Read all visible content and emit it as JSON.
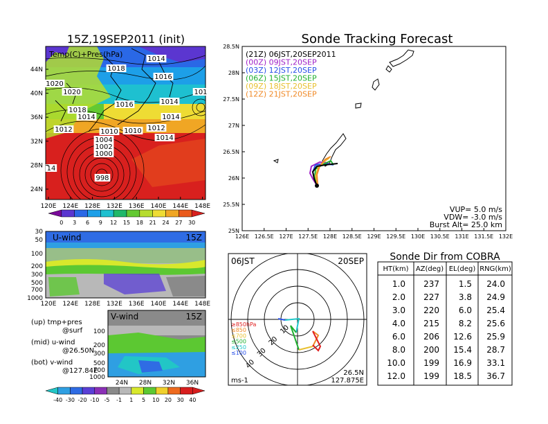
{
  "left": {
    "title": "15Z,19SEP2011 (init)",
    "map": {
      "label": "Temp(C)+Pres(hPa)",
      "lat_ticks": [
        "44N",
        "40N",
        "36N",
        "32N",
        "28N",
        "24N"
      ],
      "lon_ticks": [
        "120E",
        "124E",
        "128E",
        "132E",
        "136E",
        "140E",
        "144E",
        "148E"
      ],
      "isobar_labels": [
        "1014",
        "1018",
        "1016",
        "1020",
        "1020",
        "1014",
        "1018",
        "1016",
        "1014",
        "1014",
        "1012",
        "1010",
        "1010",
        "1012",
        "1014",
        "1004",
        "1002",
        "1000",
        "998",
        "14",
        "101"
      ],
      "colorbar_ticks": [
        "0",
        "3",
        "6",
        "9",
        "12",
        "15",
        "18",
        "21",
        "24",
        "27",
        "30"
      ],
      "colorbar_colors": [
        "#7a0a9a",
        "#5b36d0",
        "#2a68e6",
        "#1d9fe8",
        "#1ec0d0",
        "#1fb86a",
        "#63c932",
        "#b6dc2e",
        "#eedc34",
        "#f0a624",
        "#ea5a1c",
        "#d8201e"
      ]
    },
    "uwind": {
      "label": "U-wind",
      "time": "15Z",
      "y_ticks": [
        "30",
        "50",
        "100",
        "200",
        "300",
        "500",
        "700",
        "1000"
      ],
      "x_ticks": [
        "120E",
        "124E",
        "128E",
        "132E",
        "136E",
        "140E",
        "144E",
        "148E"
      ]
    },
    "vwind": {
      "label": "V-wind",
      "time": "15Z",
      "y_ticks": [
        "100",
        "200",
        "300",
        "500",
        "700",
        "1000"
      ],
      "x_ticks": [
        "24N",
        "28N",
        "32N",
        "36N"
      ]
    },
    "notes": [
      {
        "label": "(up) tmp+pres",
        "sub": "@surf"
      },
      {
        "label": "(mid) u-wind",
        "sub": "@26.50N"
      },
      {
        "label": "(bot) v-wind",
        "sub": "@127.84E"
      }
    ],
    "wind_colorbar_ticks": [
      "-40",
      "-30",
      "-20",
      "-10",
      "-5",
      "-1",
      "1",
      "5",
      "10",
      "20",
      "30",
      "40"
    ],
    "wind_colorbar_colors": [
      "#22c6c6",
      "#2f9fe2",
      "#2f6ce4",
      "#5a3fd6",
      "#8a2fb6",
      "#8a8a8a",
      "#b8b8b8",
      "#d8e82c",
      "#5cc832",
      "#f0d02c",
      "#ee6a1e",
      "#d81e1e"
    ]
  },
  "track": {
    "title": "Sonde Tracking Forecast",
    "lat_ticks": [
      "28.5N",
      "28N",
      "27.5N",
      "27N",
      "26.5N",
      "26N",
      "25.5N",
      "25N"
    ],
    "lon_ticks": [
      "126E",
      "126.5E",
      "127E",
      "127.5E",
      "128E",
      "128.5E",
      "129E",
      "129.5E",
      "130E",
      "130.5E",
      "131E",
      "131.5E",
      "132E"
    ],
    "legend": [
      {
        "text": "(21Z) 06JST,20SEP2011",
        "color": "#000000"
      },
      {
        "text": "(00Z) 09JST,20SEP",
        "color": "#a020c8"
      },
      {
        "text": "(03Z) 12JST,20SEP",
        "color": "#2850e8"
      },
      {
        "text": "(06Z) 15JST,20SEP",
        "color": "#20b030"
      },
      {
        "text": "(09Z) 18JST,20SEP",
        "color": "#e8c030"
      },
      {
        "text": "(12Z) 21JST,20SEP",
        "color": "#f08a28"
      }
    ],
    "params": [
      "VUP= 5.0 m/s",
      "VDW= -3.0 m/s",
      "Burst Alt= 25.0 km"
    ]
  },
  "hodo": {
    "time": "06JST",
    "date": "20SEP",
    "ring_labels": [
      "10",
      "20",
      "30",
      "40"
    ],
    "unit": "ms-1",
    "loc_lat": "26.5N",
    "loc_lon": "127.875E",
    "legend": [
      {
        "text": "≥850hPa",
        "color": "#e02020"
      },
      {
        "text": "≤850",
        "color": "#f08a28"
      },
      {
        "text": "≤700",
        "color": "#e8c030"
      },
      {
        "text": "≤500",
        "color": "#20b030"
      },
      {
        "text": "≤250",
        "color": "#20c8c8"
      },
      {
        "text": "≤100",
        "color": "#2850e8"
      }
    ]
  },
  "table": {
    "title": "Sonde Dir from COBRA",
    "headers": [
      "HT(km)",
      "AZ(deg)",
      "EL(deg)",
      "RNG(km)"
    ],
    "rows": [
      [
        "1.0",
        "237",
        "1.5",
        "24.0"
      ],
      [
        "2.0",
        "227",
        "3.8",
        "24.9"
      ],
      [
        "3.0",
        "220",
        "6.0",
        "25.4"
      ],
      [
        "4.0",
        "215",
        "8.2",
        "25.6"
      ],
      [
        "6.0",
        "206",
        "12.6",
        "25.9"
      ],
      [
        "8.0",
        "200",
        "15.4",
        "28.7"
      ],
      [
        "10.0",
        "199",
        "16.9",
        "33.1"
      ],
      [
        "12.0",
        "199",
        "18.5",
        "36.7"
      ]
    ]
  }
}
